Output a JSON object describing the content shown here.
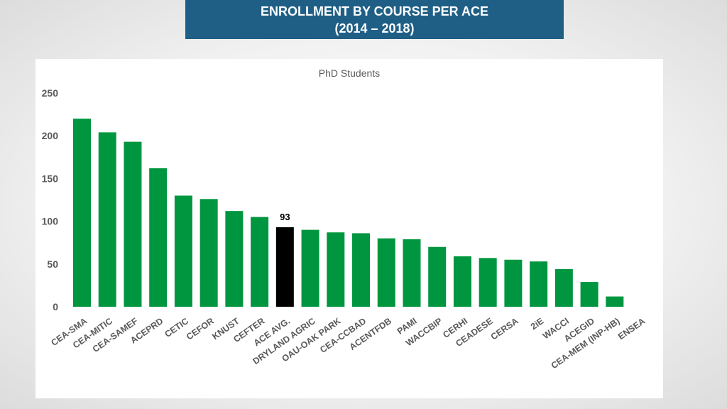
{
  "header": {
    "title_line1": "ENROLLMENT BY COURSE PER ACE",
    "title_line2": "(2014 – 2018)"
  },
  "colors": {
    "banner": "#1f5f86",
    "bar": "#00963f",
    "highlight_bar": "#000000"
  },
  "chart_data": {
    "type": "bar",
    "title": "PhD Students",
    "xlabel": "",
    "ylabel": "",
    "ylim": [
      0,
      250
    ],
    "yticks": [
      0,
      50,
      100,
      150,
      200,
      250
    ],
    "grid": false,
    "categories": [
      "CEA-SMA",
      "CEA-MITIC",
      "CEA-SAMEF",
      "ACEPRD",
      "CETIC",
      "CEFOR",
      "KNUST",
      "CEFTER",
      "ACE AVG.",
      "DRYLAND AGRIC",
      "OAU-OAK PARK",
      "CEA-CCBAD",
      "ACENTFDB",
      "PAMI",
      "WACCBIP",
      "CERHI",
      "CEADESE",
      "CERSA",
      "2iE",
      "WACCI",
      "ACEGID",
      "CEA-MEM (INP-HB)",
      "ENSEA"
    ],
    "values": [
      220,
      204,
      193,
      162,
      130,
      126,
      112,
      105,
      93,
      90,
      87,
      86,
      80,
      79,
      70,
      59,
      57,
      55,
      53,
      44,
      29,
      12,
      0
    ],
    "highlight_index": 8,
    "data_labels": [
      {
        "index": 8,
        "text": "93"
      }
    ]
  }
}
